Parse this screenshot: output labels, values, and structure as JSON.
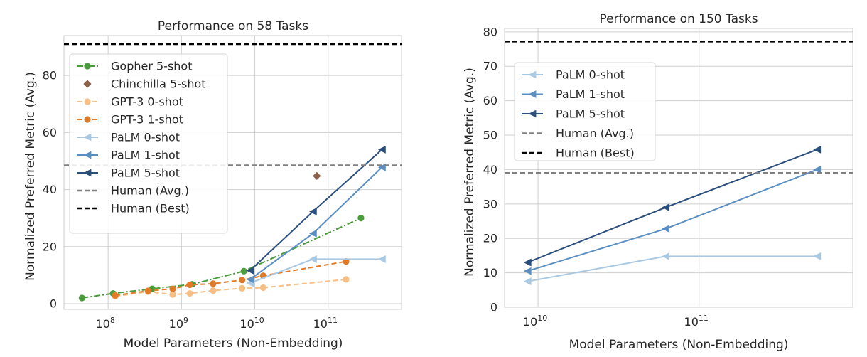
{
  "figure": {
    "panels": [
      {
        "id": "left",
        "title": "Performance on 58 Tasks"
      },
      {
        "id": "right",
        "title": "Performance on 150 Tasks"
      }
    ]
  },
  "chart_data": [
    {
      "type": "line",
      "title": "Performance on 58 Tasks",
      "xlabel": "Model Parameters (Non-Embedding)",
      "ylabel": "Normalized Preferred Metric (Avg.)",
      "xscale": "log",
      "xlim": [
        25000000.0,
        1000000000000.0
      ],
      "ylim": [
        -2,
        94
      ],
      "xticks": [
        {
          "value": 100000000.0,
          "base": "10",
          "exp": "8"
        },
        {
          "value": 1000000000.0,
          "base": "10",
          "exp": "9"
        },
        {
          "value": 10000000000.0,
          "base": "10",
          "exp": "10"
        },
        {
          "value": 100000000000.0,
          "base": "10",
          "exp": "11"
        }
      ],
      "yticks": [
        0,
        20,
        40,
        60,
        80
      ],
      "grid": true,
      "legend_position": "upper-left",
      "series": [
        {
          "name": "Gopher 5-shot",
          "color": "#4a9c3a",
          "linestyle": "dashdot",
          "marker": "circle",
          "points": [
            [
              44000000.0,
              2
            ],
            [
              117000000.0,
              3.6
            ],
            [
              400000000.0,
              5.2
            ],
            [
              1400000000.0,
              6.8
            ],
            [
              7100000000.0,
              11.4
            ],
            [
              280000000000.0,
              30
            ]
          ]
        },
        {
          "name": "Chinchilla 5-shot",
          "color": "#8c6049",
          "linestyle": "none",
          "marker": "diamond",
          "points": [
            [
              70000000000.0,
              44.8
            ]
          ]
        },
        {
          "name": "GPT-3 0-shot",
          "color": "#f7bf86",
          "linestyle": "dashed",
          "marker": "circle",
          "points": [
            [
              125000000.0,
              2.6
            ],
            [
              350000000.0,
              4.2
            ],
            [
              760000000.0,
              3.2
            ],
            [
              1300000000.0,
              3.6
            ],
            [
              2700000000.0,
              4.6
            ],
            [
              6700000000.0,
              5.4
            ],
            [
              13000000000.0,
              5.6
            ],
            [
              175000000000.0,
              8.5
            ]
          ]
        },
        {
          "name": "GPT-3 1-shot",
          "color": "#e07b2a",
          "linestyle": "dashed",
          "marker": "circle",
          "points": [
            [
              125000000.0,
              2.9
            ],
            [
              350000000.0,
              4.5
            ],
            [
              760000000.0,
              5.2
            ],
            [
              1300000000.0,
              6.6
            ],
            [
              2700000000.0,
              7.0
            ],
            [
              6700000000.0,
              8.3
            ],
            [
              13000000000.0,
              9.8
            ],
            [
              175000000000.0,
              14.8
            ]
          ]
        },
        {
          "name": "PaLM 0-shot",
          "color": "#a9c9e3",
          "linestyle": "solid",
          "marker": "triangle-left",
          "points": [
            [
              8600000000.0,
              7.2
            ],
            [
              62000000000.0,
              15.6
            ],
            [
              540000000000.0,
              15.6
            ]
          ]
        },
        {
          "name": "PaLM 1-shot",
          "color": "#5b8fc2",
          "linestyle": "solid",
          "marker": "triangle-left",
          "points": [
            [
              8600000000.0,
              8.5
            ],
            [
              62000000000.0,
              24.6
            ],
            [
              540000000000.0,
              47.8
            ]
          ]
        },
        {
          "name": "PaLM 5-shot",
          "color": "#2b4f7c",
          "linestyle": "solid",
          "marker": "triangle-left",
          "points": [
            [
              8600000000.0,
              11.6
            ],
            [
              62000000000.0,
              32.3
            ],
            [
              540000000000.0,
              54
            ]
          ]
        },
        {
          "name": "Human (Avg.)",
          "color": "#808080",
          "linestyle": "dashed",
          "marker": "none",
          "hline": 48.5
        },
        {
          "name": "Human (Best)",
          "color": "#000000",
          "linestyle": "dashed",
          "marker": "none",
          "hline": 91
        }
      ]
    },
    {
      "type": "line",
      "title": "Performance on 150 Tasks",
      "xlabel": "Model Parameters (Non-Embedding)",
      "ylabel": "Normalized Preferred Metric (Avg.)",
      "xscale": "log",
      "xlim": [
        6200000000.0,
        900000000000.0
      ],
      "ylim": [
        0,
        81
      ],
      "xticks": [
        {
          "value": 10000000000.0,
          "base": "10",
          "exp": "10"
        },
        {
          "value": 100000000000.0,
          "base": "10",
          "exp": "11"
        }
      ],
      "yticks": [
        0,
        10,
        20,
        30,
        40,
        50,
        60,
        70,
        80
      ],
      "grid": true,
      "legend_position": "upper-left",
      "series": [
        {
          "name": "PaLM 0-shot",
          "color": "#a9c9e3",
          "linestyle": "solid",
          "marker": "triangle-left",
          "points": [
            [
              8600000000.0,
              7.5
            ],
            [
              62000000000.0,
              14.8
            ],
            [
              540000000000.0,
              14.8
            ]
          ]
        },
        {
          "name": "PaLM 1-shot",
          "color": "#5b8fc2",
          "linestyle": "solid",
          "marker": "triangle-left",
          "points": [
            [
              8600000000.0,
              10.5
            ],
            [
              62000000000.0,
              22.8
            ],
            [
              540000000000.0,
              40
            ]
          ]
        },
        {
          "name": "PaLM 5-shot",
          "color": "#2b4f7c",
          "linestyle": "solid",
          "marker": "triangle-left",
          "points": [
            [
              8600000000.0,
              13
            ],
            [
              62000000000.0,
              29
            ],
            [
              540000000000.0,
              45.8
            ]
          ]
        },
        {
          "name": "Human (Avg.)",
          "color": "#808080",
          "linestyle": "dashed",
          "marker": "none",
          "hline": 39
        },
        {
          "name": "Human (Best)",
          "color": "#000000",
          "linestyle": "dashed",
          "marker": "none",
          "hline": 77.2
        }
      ]
    }
  ]
}
